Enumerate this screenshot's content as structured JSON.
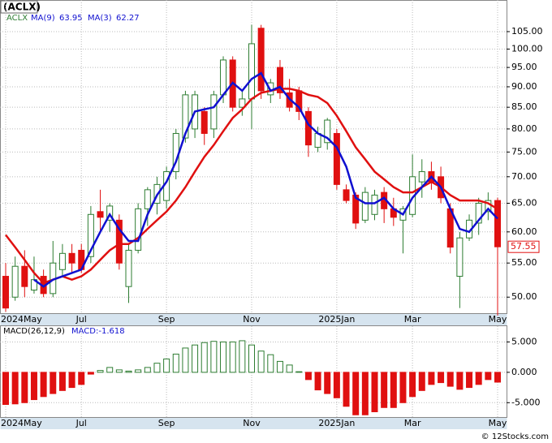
{
  "chart_data": [
    {
      "type": "candlestick",
      "title": "(ACLX)",
      "symbol": "ACLX",
      "categories": [
        "2024May",
        null,
        null,
        null,
        null,
        null,
        null,
        null,
        "Jul",
        null,
        null,
        null,
        null,
        null,
        null,
        null,
        null,
        "Sep",
        null,
        null,
        null,
        null,
        null,
        null,
        null,
        null,
        "Nov",
        null,
        null,
        null,
        null,
        null,
        null,
        null,
        null,
        "2025Jan",
        null,
        null,
        null,
        null,
        null,
        null,
        null,
        "Mar",
        null,
        null,
        null,
        null,
        null,
        null,
        null,
        null,
        "May"
      ],
      "open": [
        53,
        50,
        54.5,
        51,
        53,
        50.5,
        54,
        56.5,
        57,
        56,
        63.5,
        62,
        62,
        51.5,
        57,
        64,
        65,
        65.5,
        71,
        78,
        80,
        84,
        80,
        88,
        97,
        85,
        87,
        106,
        88,
        95,
        88.5,
        89,
        84,
        76,
        77,
        79,
        67.5,
        66.5,
        62,
        63,
        67,
        64,
        62,
        63,
        69,
        71,
        70,
        64,
        53,
        59,
        61.5,
        63.5,
        65.5
      ],
      "high": [
        55,
        56,
        57,
        56,
        54,
        58.5,
        58,
        58,
        58,
        64.5,
        67.5,
        65,
        63,
        58,
        65,
        68,
        70,
        72,
        80,
        89,
        89,
        85,
        89,
        98,
        98,
        89,
        107,
        107,
        92,
        97,
        92,
        90,
        85,
        80.5,
        82.5,
        80,
        68.5,
        67,
        68,
        67.5,
        68,
        66,
        64.5,
        74.5,
        73.5,
        73,
        72,
        65,
        60,
        63,
        66,
        67,
        66
      ],
      "low": [
        48,
        49.5,
        50,
        50.5,
        50,
        50,
        53,
        53.5,
        53.5,
        55,
        60,
        60,
        54,
        49.2,
        56.5,
        61,
        63,
        64,
        69.5,
        77,
        78,
        76.5,
        78,
        86,
        84,
        83,
        80,
        87,
        86,
        87,
        84,
        82,
        74,
        75,
        75.5,
        67.5,
        65,
        60.5,
        61.5,
        62,
        61.5,
        61,
        56.5,
        62.5,
        66,
        67.5,
        65,
        56.5,
        48.5,
        58.5,
        59.5,
        62,
        47.5
      ],
      "close": [
        48.5,
        54.5,
        51.5,
        52.5,
        50.5,
        55,
        56.5,
        55,
        54,
        63,
        62.5,
        64.5,
        55,
        57,
        64,
        67.5,
        68.5,
        71,
        79,
        88,
        88,
        79,
        88,
        97,
        85,
        87,
        101.5,
        89,
        91,
        88.5,
        85,
        84,
        76.5,
        79,
        82,
        68.5,
        65.5,
        61.5,
        67,
        66.5,
        64,
        62.5,
        64,
        70,
        71,
        69,
        66,
        57.5,
        59,
        62,
        65,
        65.5,
        57.55
      ],
      "close_label": "57.55",
      "up_color": "#2e7d32",
      "down_color": "#e01010",
      "series": [
        {
          "name": "MA(9)",
          "value_label": "63.95",
          "color": "#e01010",
          "values": [
            59.5,
            57.5,
            55.5,
            53.5,
            52,
            52.5,
            53,
            52.5,
            53,
            54,
            55.5,
            57,
            58,
            58,
            59,
            60.5,
            62,
            63.5,
            65.5,
            68,
            71,
            74,
            76.5,
            79.5,
            82.5,
            84.5,
            87,
            88.5,
            89,
            89.5,
            89.5,
            89,
            88,
            87.5,
            86,
            83,
            79.5,
            76,
            73.5,
            71,
            69.5,
            68,
            67,
            67,
            68,
            69,
            68,
            66.5,
            65.5,
            65.5,
            65.5,
            65,
            63.95
          ]
        },
        {
          "name": "MA(3)",
          "value_label": "62.27",
          "color": "#1010d0",
          "values": [
            null,
            null,
            null,
            52.5,
            51.5,
            52.5,
            53,
            53.5,
            54,
            57,
            60,
            63,
            60.5,
            58.5,
            58.5,
            63,
            66.5,
            69,
            73,
            79,
            84,
            84.5,
            85,
            88,
            91,
            89,
            92,
            93.5,
            89,
            90,
            87,
            85,
            81,
            79,
            78,
            76,
            72,
            66,
            65,
            65,
            66,
            64,
            63,
            66,
            68,
            70,
            68,
            64,
            60.5,
            60,
            62,
            64,
            62.27
          ]
        }
      ],
      "log_scale": true,
      "grid": true,
      "ylim": [
        47.7,
        114.7
      ],
      "yticks": [
        {
          "value": 50,
          "label": "50.00"
        },
        {
          "value": 55,
          "label": "55.00"
        },
        {
          "value": 60,
          "label": "60.00"
        },
        {
          "value": 65,
          "label": "65.00"
        },
        {
          "value": 70,
          "label": "70.00"
        },
        {
          "value": 75,
          "label": "75.00"
        },
        {
          "value": 80,
          "label": "80.00"
        },
        {
          "value": 85,
          "label": "85.00"
        },
        {
          "value": 90,
          "label": "90.00"
        },
        {
          "value": 95,
          "label": "95.00"
        },
        {
          "value": 100,
          "label": "100.00"
        },
        {
          "value": 105,
          "label": "105.00"
        }
      ]
    },
    {
      "type": "bar",
      "title": "MACD(26,12,9)",
      "value_text": "MACD:-1.618",
      "categories": [
        "2024May",
        null,
        null,
        null,
        null,
        null,
        null,
        null,
        "Jul",
        null,
        null,
        null,
        null,
        null,
        null,
        null,
        null,
        "Sep",
        null,
        null,
        null,
        null,
        null,
        null,
        null,
        null,
        "Nov",
        null,
        null,
        null,
        null,
        null,
        null,
        null,
        null,
        "2025Jan",
        null,
        null,
        null,
        null,
        null,
        null,
        null,
        "Mar",
        null,
        null,
        null,
        null,
        null,
        null,
        null,
        null,
        "May"
      ],
      "values": [
        -5.3,
        -5.2,
        -5,
        -4.5,
        -4,
        -3.5,
        -3,
        -2.5,
        -2,
        -0.3,
        0.3,
        0.8,
        0.4,
        0.2,
        0.4,
        0.8,
        1.5,
        2.2,
        3,
        4,
        4.5,
        4.9,
        5.1,
        5,
        5,
        5.2,
        4.5,
        3.5,
        2.9,
        1.8,
        1.2,
        0.1,
        -1.2,
        -2.9,
        -3.5,
        -4.2,
        -5.6,
        -7,
        -7,
        -6.5,
        -5.8,
        -5.8,
        -5,
        -4,
        -3,
        -2,
        -1.7,
        -2.3,
        -2.8,
        -2.5,
        -2,
        -1.2,
        -1.618
      ],
      "positive_color": "#2e7d32",
      "negative_color": "#e01010",
      "grid": true,
      "ylim": [
        -7.5,
        7.6
      ],
      "yticks": [
        {
          "value": 5,
          "label": "5.000"
        },
        {
          "value": 0,
          "label": "0.000"
        },
        {
          "value": -5,
          "label": "-5.000"
        }
      ]
    }
  ],
  "footer": "© 12Stocks.com"
}
